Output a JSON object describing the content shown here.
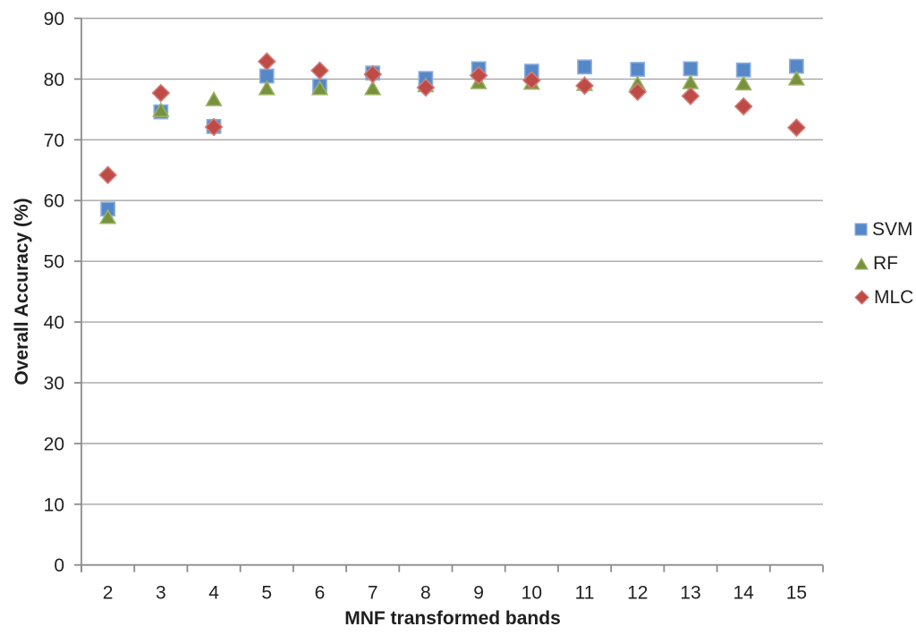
{
  "chart_data": {
    "type": "scatter",
    "title": "",
    "xlabel": "MNF transformed bands",
    "ylabel": "Overall Accuracy (%)",
    "categories": [
      2,
      3,
      4,
      5,
      6,
      7,
      8,
      9,
      10,
      11,
      12,
      13,
      14,
      15
    ],
    "y_ticks": [
      0,
      10,
      20,
      30,
      40,
      50,
      60,
      70,
      80,
      90
    ],
    "ylim": [
      0,
      90
    ],
    "grid": "horizontal",
    "legend_position": "right",
    "colors": {
      "gridline": "#a6a6a6",
      "axis": "#8c8c8c",
      "text": "#1f1f1f",
      "background": "#ffffff"
    },
    "series": [
      {
        "name": "SVM",
        "marker": "square",
        "color": "#5587c9",
        "border": "#8aaede",
        "values": [
          58.6,
          74.6,
          72.2,
          80.5,
          78.9,
          81.0,
          80.1,
          81.7,
          81.3,
          82.0,
          81.6,
          81.7,
          81.5,
          82.1
        ]
      },
      {
        "name": "RF",
        "marker": "triangle",
        "color": "#77913d",
        "border": "#9cb363",
        "values": [
          57.3,
          74.9,
          76.7,
          78.5,
          78.5,
          78.5,
          79.0,
          79.5,
          79.4,
          79.2,
          79.3,
          79.5,
          79.3,
          80.1
        ]
      },
      {
        "name": "MLC",
        "marker": "diamond",
        "color": "#bf4b47",
        "border": "#d0817e",
        "values": [
          64.2,
          77.7,
          72.1,
          82.9,
          81.4,
          80.8,
          78.6,
          80.6,
          79.8,
          78.9,
          77.9,
          77.2,
          75.5,
          72.0
        ]
      }
    ]
  }
}
